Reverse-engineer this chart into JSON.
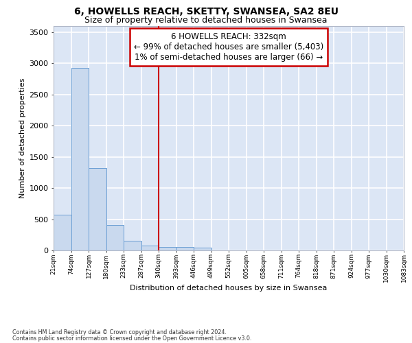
{
  "title": "6, HOWELLS REACH, SKETTY, SWANSEA, SA2 8EU",
  "subtitle": "Size of property relative to detached houses in Swansea",
  "xlabel": "Distribution of detached houses by size in Swansea",
  "ylabel": "Number of detached properties",
  "footnote1": "Contains HM Land Registry data © Crown copyright and database right 2024.",
  "footnote2": "Contains public sector information licensed under the Open Government Licence v3.0.",
  "bar_color": "#c9d9ee",
  "bar_edge_color": "#6b9fd4",
  "background_color": "#dce6f5",
  "grid_color": "#ffffff",
  "fig_background": "#ffffff",
  "vline_color": "#cc0000",
  "annotation_text": "6 HOWELLS REACH: 332sqm\n← 99% of detached houses are smaller (5,403)\n1% of semi-detached houses are larger (66) →",
  "annotation_box_color": "#cc0000",
  "bar_heights": [
    570,
    2920,
    1320,
    410,
    150,
    80,
    60,
    55,
    40,
    0,
    0,
    0,
    0,
    0,
    0,
    0,
    0,
    0,
    0,
    0
  ],
  "tick_labels": [
    "21sqm",
    "74sqm",
    "127sqm",
    "180sqm",
    "233sqm",
    "287sqm",
    "340sqm",
    "393sqm",
    "446sqm",
    "499sqm",
    "552sqm",
    "605sqm",
    "658sqm",
    "711sqm",
    "764sqm",
    "818sqm",
    "871sqm",
    "924sqm",
    "977sqm",
    "1030sqm",
    "1083sqm"
  ],
  "ylim": [
    0,
    3600
  ],
  "yticks": [
    0,
    500,
    1000,
    1500,
    2000,
    2500,
    3000,
    3500
  ],
  "title_fontsize": 10,
  "subtitle_fontsize": 9,
  "axis_label_fontsize": 8,
  "tick_fontsize": 6.5,
  "annotation_fontsize": 8.5,
  "vline_bar_index": 6
}
